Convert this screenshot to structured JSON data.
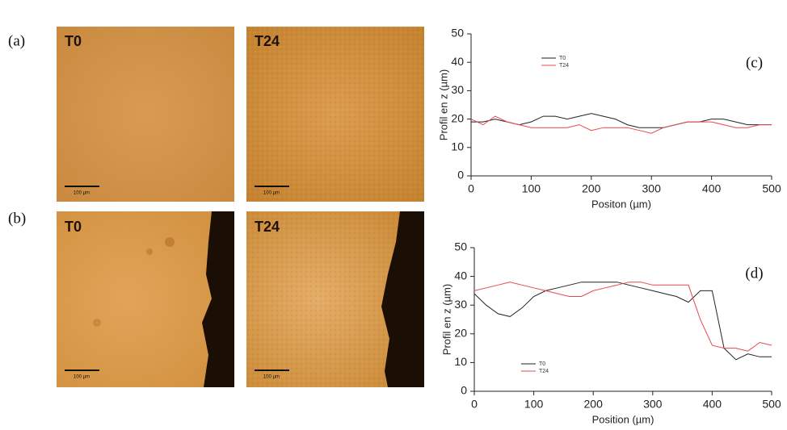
{
  "panel_labels": [
    "(a)",
    "(b)"
  ],
  "images": [
    {
      "label": "T0",
      "scale_bar": "100 µm"
    },
    {
      "label": "T24",
      "scale_bar": "100 µm"
    },
    {
      "label": "T0",
      "scale_bar": "100 µm"
    },
    {
      "label": "T24",
      "scale_bar": "100 µm"
    }
  ],
  "chart_data": [
    {
      "type": "line",
      "annotation": "(c)",
      "xlabel": "Positon (µm)",
      "ylabel": "Profil en z (µm)",
      "x": [
        0,
        20,
        40,
        60,
        80,
        100,
        120,
        140,
        160,
        180,
        200,
        220,
        240,
        260,
        280,
        300,
        320,
        340,
        360,
        380,
        400,
        420,
        440,
        460,
        480,
        500
      ],
      "series": [
        {
          "name": "T0",
          "color": "#222222",
          "values": [
            19,
            19,
            20,
            19,
            18,
            19,
            21,
            21,
            20,
            21,
            22,
            21,
            20,
            18,
            17,
            17,
            17,
            18,
            19,
            19,
            20,
            20,
            19,
            18,
            18,
            18
          ]
        },
        {
          "name": "T24",
          "color": "#e8474f",
          "values": [
            20,
            18,
            21,
            19,
            18,
            17,
            17,
            17,
            17,
            18,
            16,
            17,
            17,
            17,
            16,
            15,
            17,
            18,
            19,
            19,
            19,
            18,
            17,
            17,
            18,
            18
          ]
        }
      ],
      "xlim": [
        0,
        500
      ],
      "ylim": [
        0,
        50
      ],
      "xticks": [
        0,
        100,
        200,
        300,
        400,
        500
      ],
      "yticks": [
        0,
        10,
        20,
        30,
        40,
        50
      ]
    },
    {
      "type": "line",
      "annotation": "(d)",
      "xlabel": "Position (µm)",
      "ylabel": "Profil en z (µm)",
      "x": [
        0,
        20,
        40,
        60,
        80,
        100,
        120,
        140,
        160,
        180,
        200,
        220,
        240,
        260,
        280,
        300,
        320,
        340,
        360,
        380,
        400,
        420,
        440,
        460,
        480,
        500
      ],
      "series": [
        {
          "name": "T0",
          "color": "#222222",
          "values": [
            34,
            30,
            27,
            26,
            29,
            33,
            35,
            36,
            37,
            38,
            38,
            38,
            38,
            37,
            36,
            35,
            34,
            33,
            31,
            35,
            35,
            15,
            11,
            13,
            12,
            12
          ]
        },
        {
          "name": "T24",
          "color": "#e8474f",
          "values": [
            35,
            36,
            37,
            38,
            37,
            36,
            35,
            34,
            33,
            33,
            35,
            36,
            37,
            38,
            38,
            37,
            37,
            37,
            37,
            25,
            16,
            15,
            15,
            14,
            17,
            16
          ]
        }
      ],
      "xlim": [
        0,
        500
      ],
      "ylim": [
        0,
        50
      ],
      "xticks": [
        0,
        100,
        200,
        300,
        400,
        500
      ],
      "yticks": [
        0,
        10,
        20,
        30,
        40,
        50
      ]
    }
  ]
}
